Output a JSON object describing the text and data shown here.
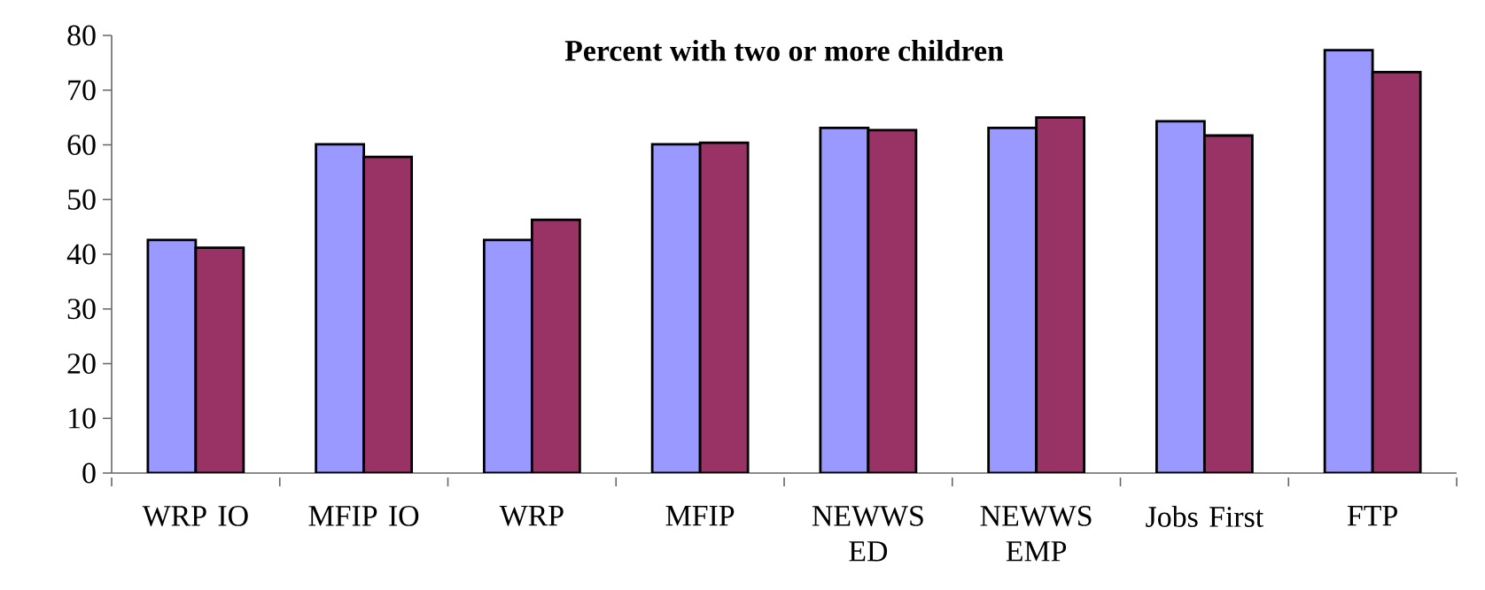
{
  "chart_data": {
    "type": "bar",
    "title": "Percent with two or more children",
    "categories": [
      "WRP IO",
      "MFIP IO",
      "WRP",
      "MFIP",
      "NEWWS ED",
      "NEWWS EMP",
      "Jobs First",
      "FTP"
    ],
    "series": [
      {
        "color": "#9999ff",
        "values": [
          42.6,
          60.1,
          42.6,
          60.1,
          63.1,
          63.1,
          64.3,
          77.3
        ]
      },
      {
        "color": "#993366",
        "values": [
          41.2,
          57.8,
          46.3,
          60.4,
          62.7,
          65.0,
          61.7,
          73.3
        ]
      }
    ],
    "ylim": [
      0,
      80
    ],
    "yticks": [
      0,
      10,
      20,
      30,
      40,
      50,
      60,
      70,
      80
    ]
  }
}
